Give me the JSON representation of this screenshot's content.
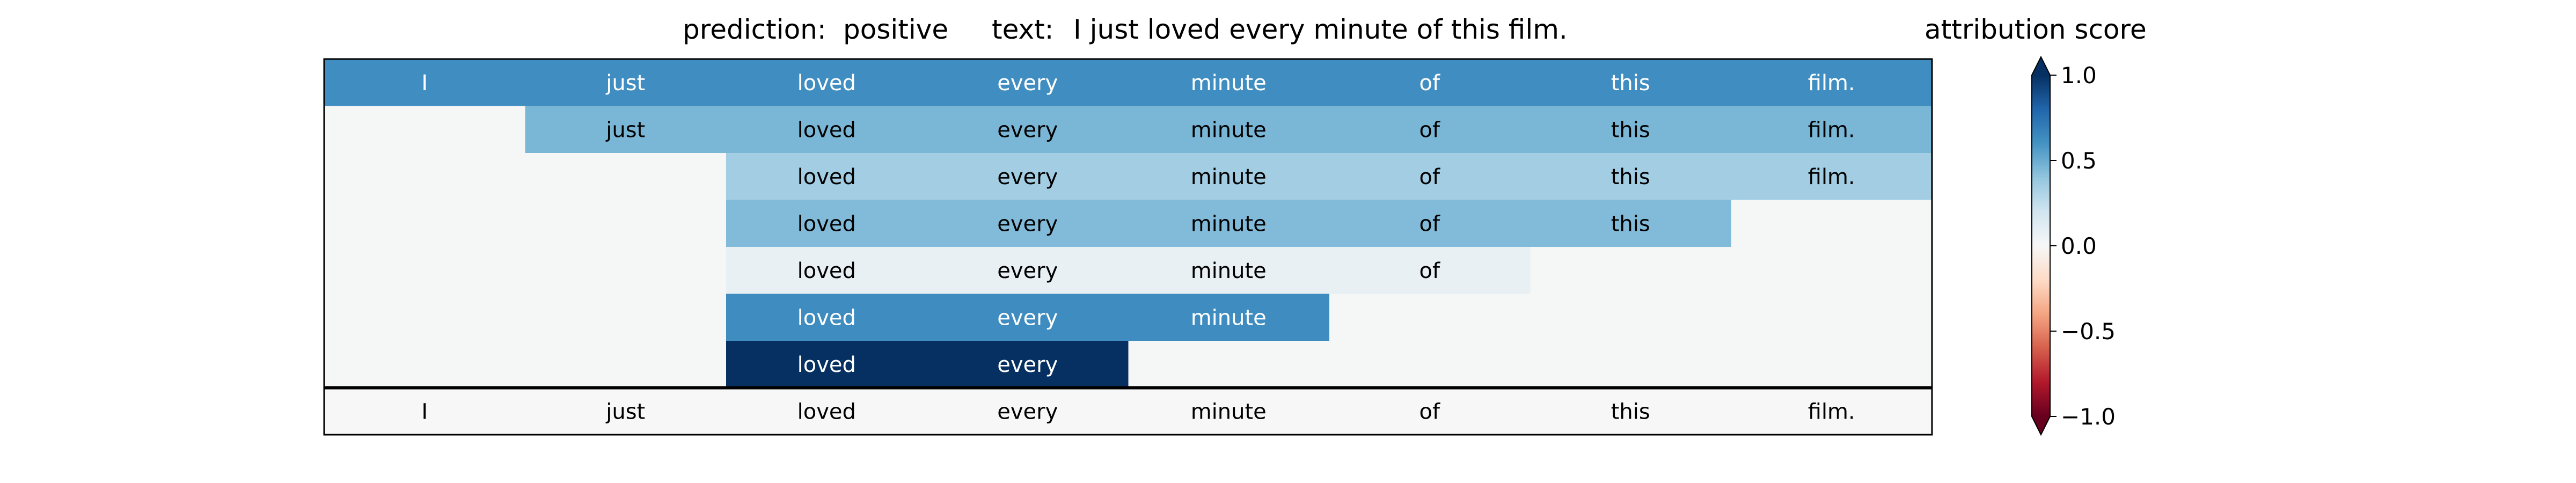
{
  "header": {
    "prediction_label": "prediction:",
    "prediction": "positive",
    "text_label": "text:",
    "text": "I just loved every minute of this film."
  },
  "chart_data": {
    "type": "heatmap",
    "tokens": [
      "I",
      "just",
      "loved",
      "every",
      "minute",
      "of",
      "this",
      "film."
    ],
    "rows": [
      {
        "start": 0,
        "end": 8,
        "score": 0.62
      },
      {
        "start": 1,
        "end": 8,
        "score": 0.46
      },
      {
        "start": 2,
        "end": 8,
        "score": 0.35
      },
      {
        "start": 2,
        "end": 7,
        "score": 0.44
      },
      {
        "start": 2,
        "end": 6,
        "score": 0.08
      },
      {
        "start": 2,
        "end": 5,
        "score": 0.63
      },
      {
        "start": 2,
        "end": 4,
        "score": 1.0
      }
    ],
    "bottom_row": {
      "tokens": [
        "I",
        "just",
        "loved",
        "every",
        "minute",
        "of",
        "this",
        "film."
      ],
      "score": 0.0
    },
    "colorbar": {
      "title": "attribution score",
      "colormap": "RdBu",
      "range": [
        -1.0,
        1.0
      ],
      "ticks": [
        1.0,
        0.5,
        0.0,
        -0.5,
        -1.0
      ],
      "tick_labels": [
        "1.0",
        "0.5",
        "0.0",
        "−0.5",
        "−1.0"
      ],
      "extend": "both"
    },
    "colors": {
      "empty": "#f5f6f6",
      "frame": "#000000",
      "dark_text": "#000000",
      "light_text": "#ffffff"
    }
  }
}
